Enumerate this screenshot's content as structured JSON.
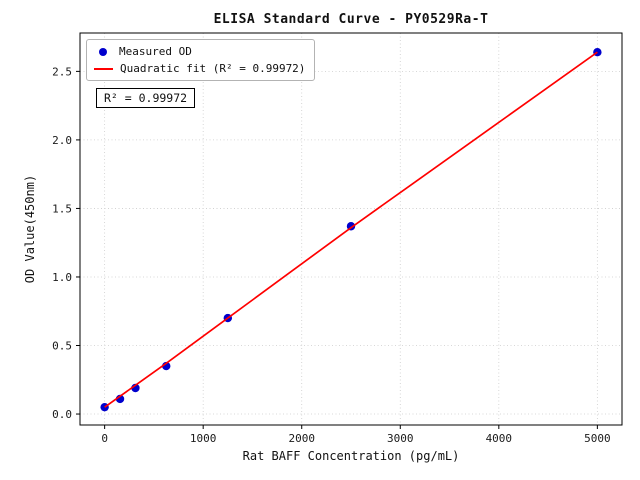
{
  "chart_data": {
    "type": "scatter",
    "title": "ELISA Standard Curve - PY0529Ra-T",
    "xlabel": "Rat BAFF Concentration (pg/mL)",
    "ylabel": "OD Value(450nm)",
    "xlim": [
      -250,
      5250
    ],
    "ylim": [
      -0.08,
      2.78
    ],
    "xticks": [
      0,
      1000,
      2000,
      3000,
      4000,
      5000
    ],
    "yticks": [
      0.0,
      0.5,
      1.0,
      1.5,
      2.0,
      2.5
    ],
    "grid": true,
    "grid_color": "#cccccc",
    "legend_position": "upper left",
    "annotation": "R² = 0.99972",
    "series": [
      {
        "name": "Measured OD",
        "type": "scatter",
        "color": "#0000cd",
        "x": [
          0,
          156.25,
          312.5,
          625,
          1250,
          2500,
          5000
        ],
        "y": [
          0.05,
          0.11,
          0.19,
          0.35,
          0.7,
          1.37,
          2.64
        ]
      },
      {
        "name": "Quadratic fit (R² = 0.99972)",
        "type": "line",
        "color": "#ff0000",
        "x": [
          0,
          625,
          1250,
          1875,
          2500,
          3125,
          3750,
          4375,
          5000
        ],
        "y": [
          0.05,
          0.37,
          0.7,
          1.03,
          1.36,
          1.68,
          2.0,
          2.32,
          2.64
        ]
      }
    ]
  }
}
